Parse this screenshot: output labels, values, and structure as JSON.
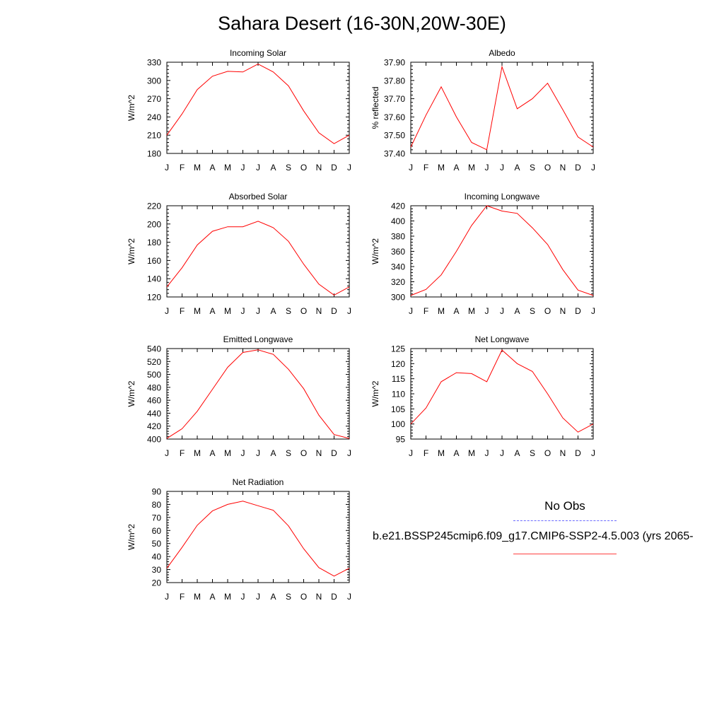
{
  "title": "Sahara Desert (16-30N,20W-30E)",
  "colors": {
    "model_line": "#ff0000",
    "obs_line": "#6a6aff",
    "axis": "#000000"
  },
  "legend": {
    "obs_label": "No Obs",
    "model_label": "b.e21.BSSP245cmip6.f09_g17.CMIP6-SSP2-4.5.003 (yrs 2065-"
  },
  "chart_data": [
    {
      "type": "line",
      "title": "Incoming Solar",
      "ylabel": "W/m^2",
      "categories": [
        "J",
        "F",
        "M",
        "A",
        "M",
        "J",
        "J",
        "A",
        "S",
        "O",
        "N",
        "D",
        "J"
      ],
      "ylim": [
        180,
        330
      ],
      "yticks": [
        "180",
        "210",
        "240",
        "270",
        "300",
        "330"
      ],
      "values": [
        210,
        245,
        285,
        307,
        315,
        314,
        327,
        314,
        291,
        250,
        214,
        196,
        210
      ]
    },
    {
      "type": "line",
      "title": "Albedo",
      "ylabel": "% reflected",
      "categories": [
        "J",
        "F",
        "M",
        "A",
        "M",
        "J",
        "J",
        "A",
        "S",
        "O",
        "N",
        "D",
        "J"
      ],
      "ylim": [
        37.4,
        37.9
      ],
      "yticks": [
        "37.40",
        "37.50",
        "37.60",
        "37.70",
        "37.80",
        "37.90"
      ],
      "values": [
        37.435,
        37.61,
        37.765,
        37.6,
        37.46,
        37.42,
        37.875,
        37.645,
        37.7,
        37.785,
        37.64,
        37.49,
        37.435
      ]
    },
    {
      "type": "line",
      "title": "Absorbed Solar",
      "ylabel": "W/m^2",
      "categories": [
        "J",
        "F",
        "M",
        "A",
        "M",
        "J",
        "J",
        "A",
        "S",
        "O",
        "N",
        "D",
        "J"
      ],
      "ylim": [
        120,
        220
      ],
      "yticks": [
        "120",
        "140",
        "160",
        "180",
        "200",
        "220"
      ],
      "values": [
        131,
        152,
        177,
        192,
        197,
        197,
        203,
        196,
        181,
        156,
        134,
        122,
        131
      ]
    },
    {
      "type": "line",
      "title": "Incoming Longwave",
      "ylabel": "W/m^2",
      "categories": [
        "J",
        "F",
        "M",
        "A",
        "M",
        "J",
        "J",
        "A",
        "S",
        "O",
        "N",
        "D",
        "J"
      ],
      "ylim": [
        300,
        420
      ],
      "yticks": [
        "300",
        "320",
        "340",
        "360",
        "380",
        "400",
        "420"
      ],
      "values": [
        302,
        310,
        329,
        360,
        394,
        420,
        413,
        410,
        391,
        369,
        336,
        309,
        302
      ]
    },
    {
      "type": "line",
      "title": "Emitted Longwave",
      "ylabel": "W/m^2",
      "categories": [
        "J",
        "F",
        "M",
        "A",
        "M",
        "J",
        "J",
        "A",
        "S",
        "O",
        "N",
        "D",
        "J"
      ],
      "ylim": [
        400,
        540
      ],
      "yticks": [
        "400",
        "420",
        "440",
        "460",
        "480",
        "500",
        "520",
        "540"
      ],
      "values": [
        401,
        416,
        443,
        477,
        511,
        534,
        538,
        531,
        508,
        478,
        437,
        407,
        401
      ]
    },
    {
      "type": "line",
      "title": "Net Longwave",
      "ylabel": "W/m^2",
      "categories": [
        "J",
        "F",
        "M",
        "A",
        "M",
        "J",
        "J",
        "A",
        "S",
        "O",
        "N",
        "D",
        "J"
      ],
      "ylim": [
        95,
        125
      ],
      "yticks": [
        "95",
        "100",
        "105",
        "110",
        "115",
        "120",
        "125"
      ],
      "values": [
        100,
        105.3,
        114,
        117,
        116.7,
        114,
        124.5,
        120,
        117.4,
        110,
        102,
        97.3,
        100
      ]
    },
    {
      "type": "line",
      "title": "Net Radiation",
      "ylabel": "W/m^2",
      "categories": [
        "J",
        "F",
        "M",
        "A",
        "M",
        "J",
        "J",
        "A",
        "S",
        "O",
        "N",
        "D",
        "J"
      ],
      "ylim": [
        20,
        90
      ],
      "yticks": [
        "20",
        "30",
        "40",
        "50",
        "60",
        "70",
        "80",
        "90"
      ],
      "values": [
        31,
        47,
        64,
        75,
        80,
        82.5,
        79,
        75.5,
        63.5,
        46,
        31.5,
        25,
        31
      ]
    }
  ]
}
